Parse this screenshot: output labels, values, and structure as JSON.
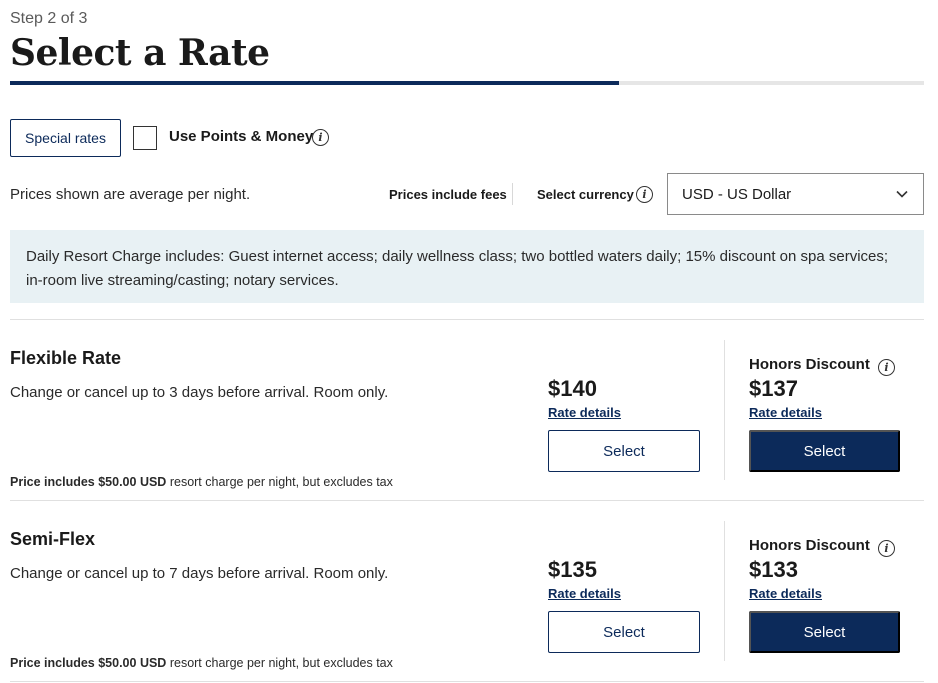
{
  "header": {
    "step": "Step 2 of 3",
    "title": "Select a Rate",
    "progress_fraction": 0.6667
  },
  "options": {
    "special_rates_label": "Special rates",
    "points_money_label": "Use Points & Money",
    "points_money_checked": false
  },
  "pricing": {
    "average_note": "Prices shown are average per night.",
    "fees_note": "Prices include fees",
    "currency_label": "Select currency",
    "currency_value": "USD - US Dollar"
  },
  "resort_charge": {
    "text": "Daily Resort Charge includes: Guest internet access; daily wellness class; two bottled waters daily; 15% discount on spa services; in-room live streaming/casting; notary services."
  },
  "rates": [
    {
      "name": "Flexible Rate",
      "description": "Change or cancel up to 3 days before arrival. Room only.",
      "price": "$140",
      "rate_details": "Rate details",
      "select_label": "Select",
      "honors_label": "Honors Discount",
      "honors_price": "$137",
      "honors_rate_details": "Rate details",
      "honors_select_label": "Select",
      "note_bold": "Price includes $50.00 USD",
      "note_rest": "resort charge per night, but excludes tax"
    },
    {
      "name": "Semi-Flex",
      "description": "Change or cancel up to 7 days before arrival. Room only.",
      "price": "$135",
      "rate_details": "Rate details",
      "select_label": "Select",
      "honors_label": "Honors Discount",
      "honors_price": "$133",
      "honors_rate_details": "Rate details",
      "honors_select_label": "Select",
      "note_bold": "Price includes $50.00 USD",
      "note_rest": "resort charge per night, but excludes tax"
    }
  ],
  "colors": {
    "brand_navy": "#0c2a5a",
    "info_bg": "#e8f1f4"
  },
  "icons": {
    "info": "info-icon",
    "chevron": "chevron-down-icon"
  }
}
